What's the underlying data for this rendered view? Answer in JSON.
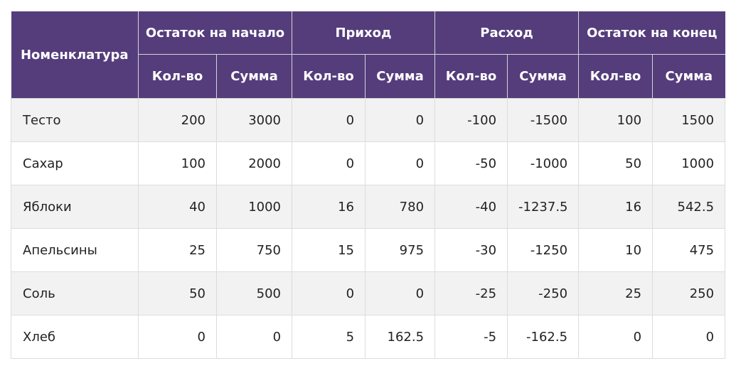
{
  "table": {
    "header": {
      "name_col": "Номенклатура",
      "groups": [
        "Остаток на начало",
        "Приход",
        "Расход",
        "Остаток на конец"
      ],
      "sub": [
        "Кол-во",
        "Сумма",
        "Кол-во",
        "Сумма",
        "Кол-во",
        "Сумма",
        "Кол-во",
        "Сумма"
      ]
    },
    "rows": [
      {
        "name": "Тесто",
        "values": [
          "200",
          "3000",
          "0",
          "0",
          "-100",
          "-1500",
          "100",
          "1500"
        ]
      },
      {
        "name": "Сахар",
        "values": [
          "100",
          "2000",
          "0",
          "0",
          "-50",
          "-1000",
          "50",
          "1000"
        ]
      },
      {
        "name": "Яблоки",
        "values": [
          "40",
          "1000",
          "16",
          "780",
          "-40",
          "-1237.5",
          "16",
          "542.5"
        ]
      },
      {
        "name": "Апельсины",
        "values": [
          "25",
          "750",
          "15",
          "975",
          "-30",
          "-1250",
          "10",
          "475"
        ]
      },
      {
        "name": "Соль",
        "values": [
          "50",
          "500",
          "0",
          "0",
          "-25",
          "-250",
          "25",
          "250"
        ]
      },
      {
        "name": "Хлеб",
        "values": [
          "0",
          "0",
          "5",
          "162.5",
          "-5",
          "-162.5",
          "0",
          "0"
        ]
      }
    ]
  },
  "colors": {
    "header_bg": "#553d7c",
    "header_text": "#ffffff",
    "row_stripe": "#f2f2f2",
    "grid_line": "#dcdcdc"
  }
}
